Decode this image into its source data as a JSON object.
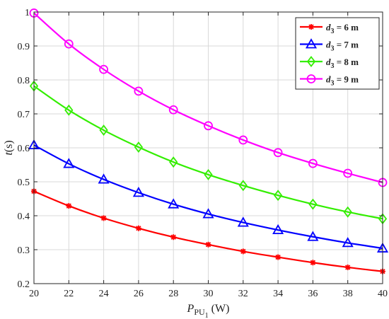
{
  "chart_data": {
    "type": "line",
    "xlabel": {
      "base": "P",
      "sub": "PU",
      "subsub": "1",
      "unit": " (W)"
    },
    "ylabel": {
      "var": "t",
      "unit": "(s)"
    },
    "x": [
      20,
      22,
      24,
      26,
      28,
      30,
      32,
      34,
      36,
      38,
      40
    ],
    "xlim": [
      20,
      40
    ],
    "ylim": [
      0.2,
      1.0
    ],
    "xticks": [
      "20",
      "22",
      "24",
      "26",
      "28",
      "30",
      "32",
      "34",
      "36",
      "38",
      "40"
    ],
    "yticks": [
      "0.2",
      "0.3",
      "0.4",
      "0.5",
      "0.6",
      "0.7",
      "0.8",
      "0.9",
      "1"
    ],
    "grid": true,
    "legend_position": "top-right",
    "series": [
      {
        "name": "d3 = 6 m",
        "label_var": "d",
        "label_sub": "3",
        "label_rest": " = 6 m",
        "color": "#ff0000",
        "marker": "asterisk",
        "values": [
          0.472,
          0.429,
          0.393,
          0.363,
          0.337,
          0.315,
          0.295,
          0.278,
          0.262,
          0.248,
          0.236
        ]
      },
      {
        "name": "d3 = 7 m",
        "label_var": "d",
        "label_sub": "3",
        "label_rest": " = 7 m",
        "color": "#0000ff",
        "marker": "triangle",
        "values": [
          0.608,
          0.553,
          0.507,
          0.468,
          0.434,
          0.405,
          0.38,
          0.358,
          0.338,
          0.32,
          0.304
        ]
      },
      {
        "name": "d3 = 8 m",
        "label_var": "d",
        "label_sub": "3",
        "label_rest": " = 8 m",
        "color": "#33ee00",
        "marker": "diamond",
        "values": [
          0.782,
          0.711,
          0.652,
          0.602,
          0.558,
          0.521,
          0.489,
          0.46,
          0.434,
          0.411,
          0.391
        ]
      },
      {
        "name": "d3 = 9 m",
        "label_var": "d",
        "label_sub": "3",
        "label_rest": " = 9 m",
        "color": "#ff00ff",
        "marker": "circle",
        "values": [
          0.997,
          0.906,
          0.831,
          0.767,
          0.712,
          0.665,
          0.623,
          0.586,
          0.554,
          0.525,
          0.498
        ]
      }
    ]
  }
}
